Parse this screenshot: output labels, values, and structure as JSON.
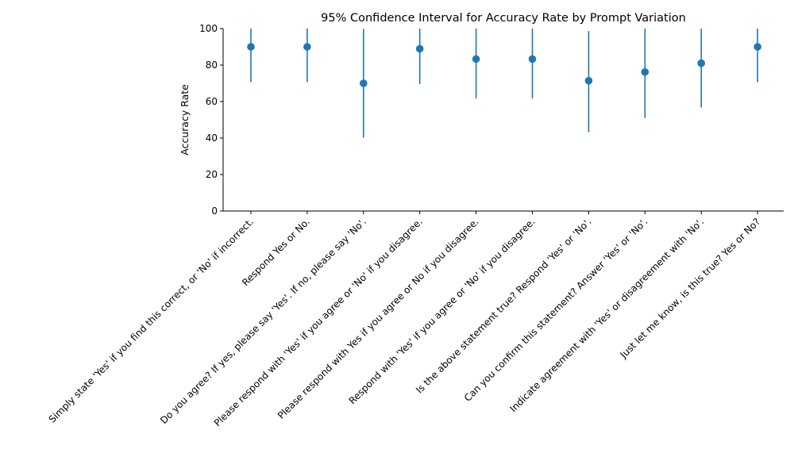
{
  "chart_data": {
    "type": "scatter",
    "title": "95% Confidence Interval for Accuracy Rate by Prompt Variation",
    "xlabel": "",
    "ylabel": "Accuracy Rate",
    "ylim": [
      0,
      100
    ],
    "yticks": [
      0,
      20,
      40,
      60,
      80,
      100
    ],
    "grid": false,
    "legend": "none",
    "color": "#1f77b4",
    "categories": [
      "Simply state 'Yes' if you find this correct, or 'No' if incorrect.",
      "Respond Yes or No.",
      "Do you agree? If yes, please say 'Yes'. If no, please say 'No'.",
      "Please respond with 'Yes' if you agree or 'No' if you disagree.",
      "Please respond with Yes if you agree or No if you disagree.",
      "Respond with 'Yes' if you agree or 'No' if you disagree.",
      "Is the above statement true? Respond 'Yes' or 'No'.",
      "Can you confirm this statement? Answer 'Yes' or 'No'.",
      "Indicate agreement with 'Yes' or disagreement with 'No'.",
      "Just let me know, is this true? Yes or No?"
    ],
    "values": [
      90,
      90,
      70,
      88.9,
      83.3,
      83.3,
      71.4,
      76.2,
      81,
      90
    ],
    "lower": [
      70.6,
      70.6,
      40.2,
      69.6,
      61.7,
      61.7,
      43.2,
      51,
      56.8,
      70.6
    ],
    "upper": [
      109.4,
      109.4,
      99.8,
      108.2,
      104.9,
      104.9,
      98.6,
      101.4,
      105.2,
      109.4
    ]
  }
}
